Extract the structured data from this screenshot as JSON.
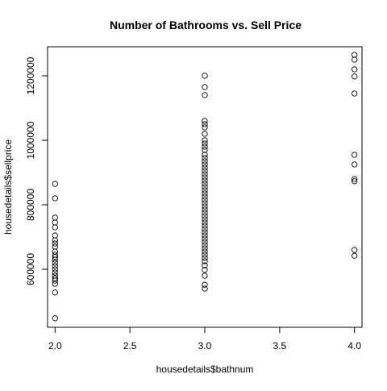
{
  "chart_data": {
    "type": "scatter",
    "title": "Number of Bathrooms vs. Sell Price",
    "xlabel": "housedetails$bathnum",
    "ylabel": "housedetails$sellprice",
    "xlim": [
      1.95,
      4.05
    ],
    "ylim": [
      420000,
      1290000
    ],
    "x_ticks": [
      2.0,
      2.5,
      3.0,
      3.5,
      4.0
    ],
    "x_tick_labels": [
      "2.0",
      "2.5",
      "3.0",
      "3.5",
      "4.0"
    ],
    "y_ticks": [
      600000,
      800000,
      1000000,
      1200000
    ],
    "y_tick_labels": [
      "600000",
      "800000",
      "1000000",
      "1200000"
    ],
    "grid": false,
    "marker": "open-circle",
    "colors": {
      "points": "#000000",
      "axes": "#000000",
      "background": "#ffffff"
    },
    "series": [
      {
        "points": [
          {
            "x": 2.0,
            "y": 865000
          },
          {
            "x": 2.0,
            "y": 820000
          },
          {
            "x": 2.0,
            "y": 760000
          },
          {
            "x": 2.0,
            "y": 745000
          },
          {
            "x": 2.0,
            "y": 730000
          },
          {
            "x": 2.0,
            "y": 705000
          },
          {
            "x": 2.0,
            "y": 690000
          },
          {
            "x": 2.0,
            "y": 680000
          },
          {
            "x": 2.0,
            "y": 670000
          },
          {
            "x": 2.0,
            "y": 655000
          },
          {
            "x": 2.0,
            "y": 645000
          },
          {
            "x": 2.0,
            "y": 638000
          },
          {
            "x": 2.0,
            "y": 630000
          },
          {
            "x": 2.0,
            "y": 620000
          },
          {
            "x": 2.0,
            "y": 610000
          },
          {
            "x": 2.0,
            "y": 600000
          },
          {
            "x": 2.0,
            "y": 590000
          },
          {
            "x": 2.0,
            "y": 580000
          },
          {
            "x": 2.0,
            "y": 572000
          },
          {
            "x": 2.0,
            "y": 565000
          },
          {
            "x": 2.0,
            "y": 555000
          },
          {
            "x": 2.0,
            "y": 528000
          },
          {
            "x": 2.0,
            "y": 448000
          },
          {
            "x": 3.0,
            "y": 1200000
          },
          {
            "x": 3.0,
            "y": 1165000
          },
          {
            "x": 3.0,
            "y": 1140000
          },
          {
            "x": 3.0,
            "y": 1060000
          },
          {
            "x": 3.0,
            "y": 1050000
          },
          {
            "x": 3.0,
            "y": 1040000
          },
          {
            "x": 3.0,
            "y": 1020000
          },
          {
            "x": 3.0,
            "y": 1000000
          },
          {
            "x": 3.0,
            "y": 990000
          },
          {
            "x": 3.0,
            "y": 980000
          },
          {
            "x": 3.0,
            "y": 970000
          },
          {
            "x": 3.0,
            "y": 955000
          },
          {
            "x": 3.0,
            "y": 945000
          },
          {
            "x": 3.0,
            "y": 935000
          },
          {
            "x": 3.0,
            "y": 925000
          },
          {
            "x": 3.0,
            "y": 915000
          },
          {
            "x": 3.0,
            "y": 905000
          },
          {
            "x": 3.0,
            "y": 895000
          },
          {
            "x": 3.0,
            "y": 885000
          },
          {
            "x": 3.0,
            "y": 875000
          },
          {
            "x": 3.0,
            "y": 865000
          },
          {
            "x": 3.0,
            "y": 855000
          },
          {
            "x": 3.0,
            "y": 845000
          },
          {
            "x": 3.0,
            "y": 835000
          },
          {
            "x": 3.0,
            "y": 825000
          },
          {
            "x": 3.0,
            "y": 815000
          },
          {
            "x": 3.0,
            "y": 805000
          },
          {
            "x": 3.0,
            "y": 795000
          },
          {
            "x": 3.0,
            "y": 785000
          },
          {
            "x": 3.0,
            "y": 775000
          },
          {
            "x": 3.0,
            "y": 765000
          },
          {
            "x": 3.0,
            "y": 755000
          },
          {
            "x": 3.0,
            "y": 745000
          },
          {
            "x": 3.0,
            "y": 735000
          },
          {
            "x": 3.0,
            "y": 725000
          },
          {
            "x": 3.0,
            "y": 715000
          },
          {
            "x": 3.0,
            "y": 705000
          },
          {
            "x": 3.0,
            "y": 695000
          },
          {
            "x": 3.0,
            "y": 685000
          },
          {
            "x": 3.0,
            "y": 675000
          },
          {
            "x": 3.0,
            "y": 665000
          },
          {
            "x": 3.0,
            "y": 655000
          },
          {
            "x": 3.0,
            "y": 645000
          },
          {
            "x": 3.0,
            "y": 635000
          },
          {
            "x": 3.0,
            "y": 625000
          },
          {
            "x": 3.0,
            "y": 612000
          },
          {
            "x": 3.0,
            "y": 598000
          },
          {
            "x": 3.0,
            "y": 580000
          },
          {
            "x": 3.0,
            "y": 552000
          },
          {
            "x": 3.0,
            "y": 540000
          },
          {
            "x": 4.0,
            "y": 1265000
          },
          {
            "x": 4.0,
            "y": 1250000
          },
          {
            "x": 4.0,
            "y": 1220000
          },
          {
            "x": 4.0,
            "y": 1198000
          },
          {
            "x": 4.0,
            "y": 1145000
          },
          {
            "x": 4.0,
            "y": 955000
          },
          {
            "x": 4.0,
            "y": 925000
          },
          {
            "x": 4.0,
            "y": 880000
          },
          {
            "x": 4.0,
            "y": 873000
          },
          {
            "x": 4.0,
            "y": 660000
          },
          {
            "x": 4.0,
            "y": 642000
          }
        ]
      }
    ]
  }
}
